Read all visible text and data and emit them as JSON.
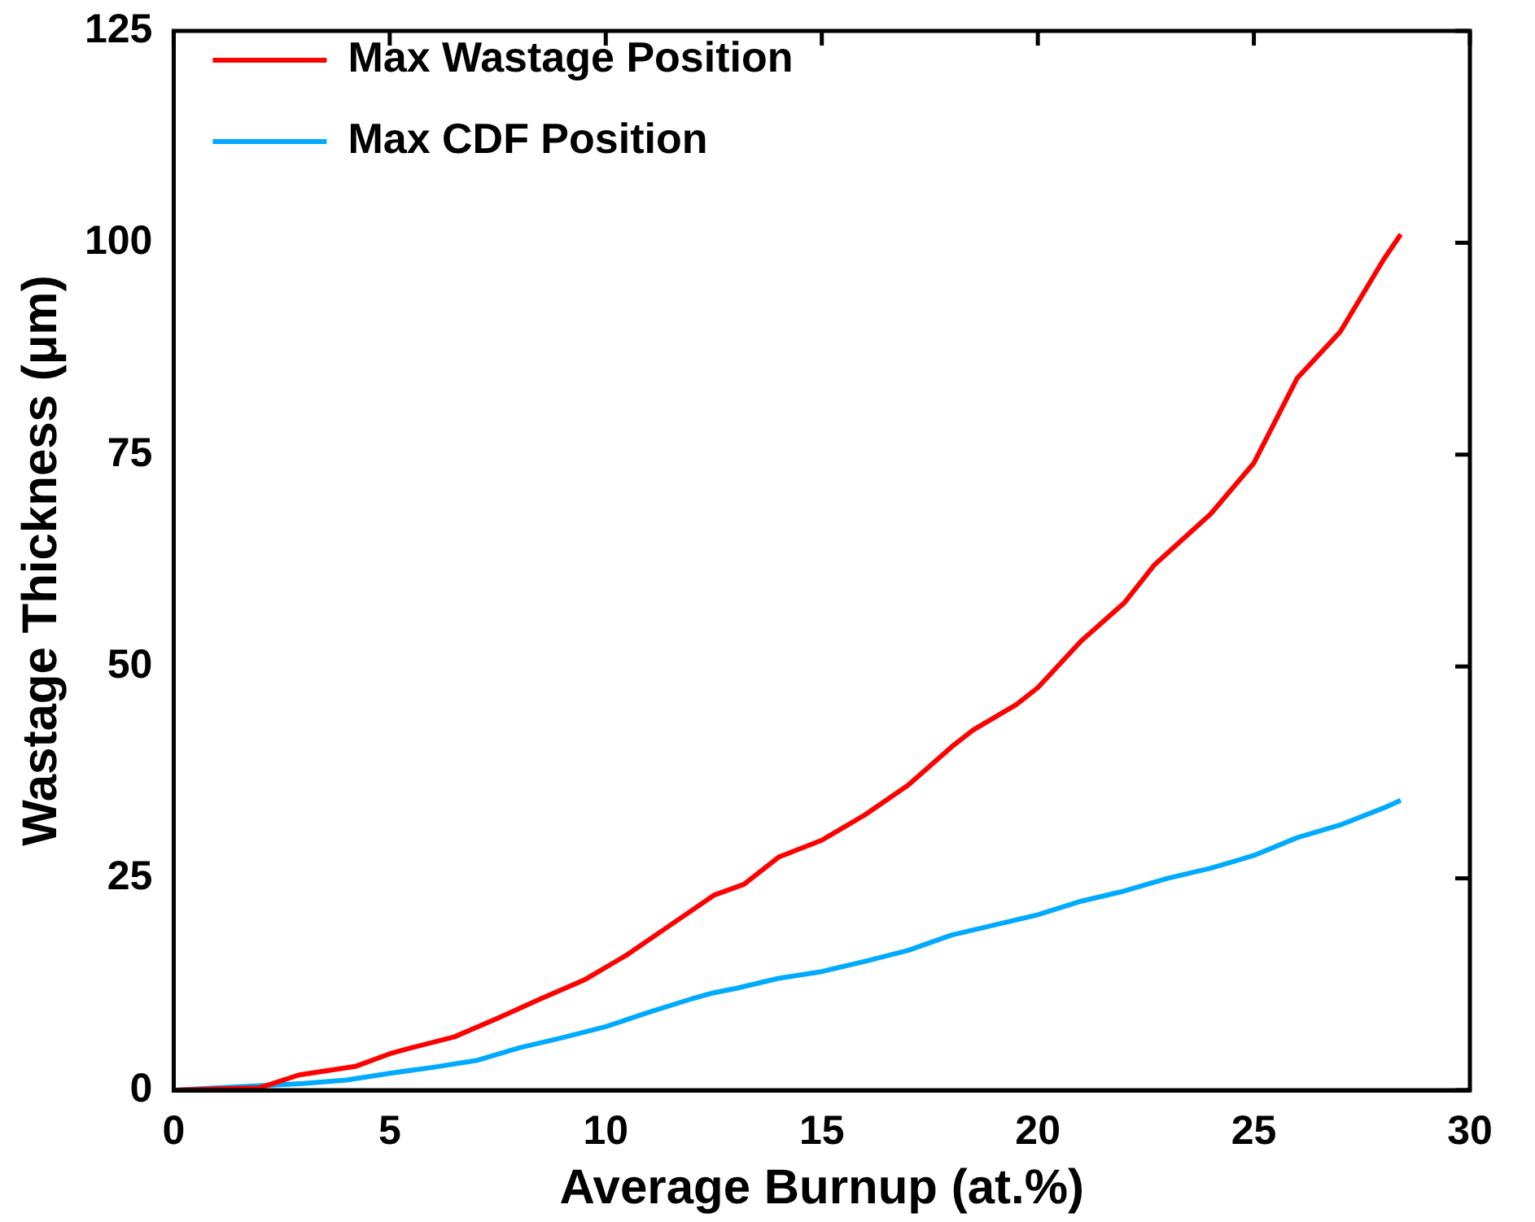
{
  "chart_data": {
    "type": "line",
    "xlabel": "Average Burnup (at.%)",
    "ylabel": "Wastage Thickness (μm)",
    "xlim": [
      0,
      30
    ],
    "xticks": [
      0,
      5,
      10,
      15,
      20,
      25,
      30
    ],
    "ylim": [
      0,
      125
    ],
    "yticks": [
      0,
      25,
      50,
      75,
      100,
      125
    ],
    "grid": false,
    "legend": "top left",
    "marker": "none",
    "line_style": "solid",
    "series": [
      {
        "name": "Max Wastage Position",
        "color": "#ff0000",
        "x": [
          0,
          2,
          2.9,
          4.2,
          5,
          5.5,
          6.5,
          7.5,
          8.5,
          9.5,
          10.5,
          11.5,
          12.5,
          13.2,
          14,
          15,
          16,
          17,
          18,
          18.5,
          19.5,
          20,
          21,
          22,
          22.7,
          24,
          25,
          25.5,
          26,
          27,
          28,
          28.4
        ],
        "values": [
          0,
          0.3,
          1.8,
          2.8,
          4.3,
          5,
          6.3,
          8.5,
          10.8,
          13,
          16,
          19.5,
          23,
          24.3,
          27.5,
          29.5,
          32.5,
          36,
          40.5,
          42.5,
          45.5,
          47.5,
          53,
          57.5,
          62,
          68,
          74,
          79,
          84,
          89.5,
          98,
          101
        ]
      },
      {
        "name": "Max CDF Position",
        "color": "#00aaff",
        "x": [
          0,
          3,
          4,
          5,
          6,
          7,
          8,
          9,
          10,
          11,
          12,
          12.5,
          13,
          14,
          15,
          16,
          17,
          18,
          19,
          20,
          21,
          22,
          23,
          24,
          25,
          26,
          27,
          28,
          28.4
        ],
        "values": [
          0,
          0.8,
          1.2,
          2,
          2.7,
          3.5,
          5,
          6.2,
          7.5,
          9.2,
          10.8,
          11.5,
          12,
          13.2,
          14,
          15.2,
          16.5,
          18.3,
          19.5,
          20.7,
          22.3,
          23.5,
          25,
          26.2,
          27.7,
          29.8,
          31.3,
          33.3,
          34.2
        ]
      }
    ]
  }
}
